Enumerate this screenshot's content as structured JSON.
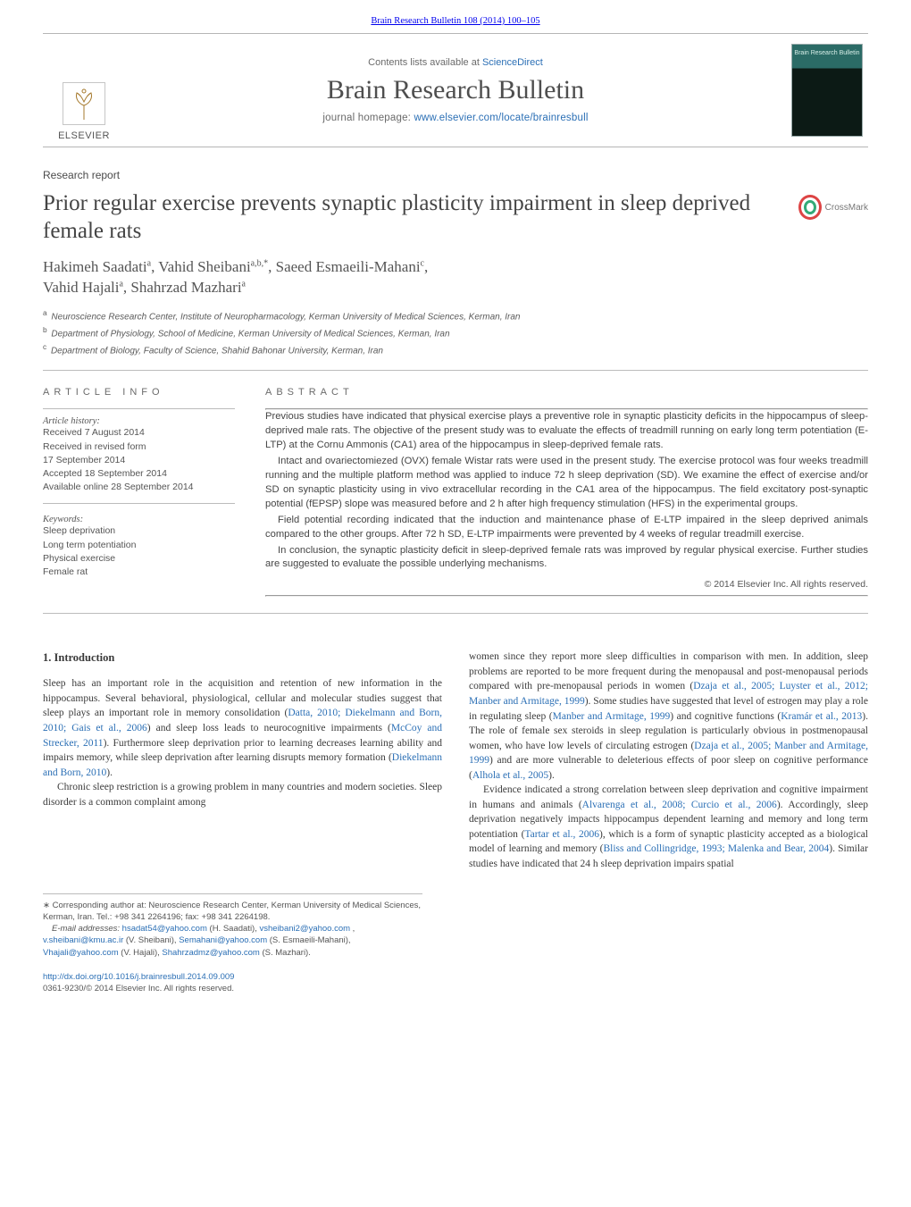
{
  "journal": {
    "citation_link_text": "Brain Research Bulletin 108 (2014) 100–105",
    "contents_prefix": "Contents lists available at ",
    "contents_link": "ScienceDirect",
    "name": "Brain Research Bulletin",
    "homepage_prefix": "journal homepage: ",
    "homepage_link": "www.elsevier.com/locate/brainresbull",
    "publisher": "ELSEVIER",
    "cover_label": "Brain Research Bulletin"
  },
  "crossmark_label": "CrossMark",
  "article": {
    "type_label": "Research report",
    "title": "Prior regular exercise prevents synaptic plasticity impairment in sleep deprived female rats",
    "authors_html_parts": {
      "a1": "Hakimeh Saadati",
      "a1s": "a",
      "a2": "Vahid Sheibani",
      "a2s": "a,b,",
      "a2star": "*",
      "a3": "Saeed Esmaeili-Mahani",
      "a3s": "c",
      "a4": "Vahid Hajali",
      "a4s": "a",
      "a5": "Shahrzad Mazhari",
      "a5s": "a"
    },
    "affiliations": {
      "a": "Neuroscience Research Center, Institute of Neuropharmacology, Kerman University of Medical Sciences, Kerman, Iran",
      "b": "Department of Physiology, School of Medicine, Kerman University of Medical Sciences, Kerman, Iran",
      "c": "Department of Biology, Faculty of Science, Shahid Bahonar University, Kerman, Iran"
    }
  },
  "info": {
    "heading": "article info",
    "history_label": "Article history:",
    "history": [
      "Received 7 August 2014",
      "Received in revised form",
      "17 September 2014",
      "Accepted 18 September 2014",
      "Available online 28 September 2014"
    ],
    "keywords_label": "Keywords:",
    "keywords": [
      "Sleep deprivation",
      "Long term potentiation",
      "Physical exercise",
      "Female rat"
    ]
  },
  "abstract": {
    "heading": "abstract",
    "paras": [
      "Previous studies have indicated that physical exercise plays a preventive role in synaptic plasticity deficits in the hippocampus of sleep-deprived male rats. The objective of the present study was to evaluate the effects of treadmill running on early long term potentiation (E-LTP) at the Cornu Ammonis (CA1) area of the hippocampus in sleep-deprived female rats.",
      "Intact and ovariectomiezed (OVX) female Wistar rats were used in the present study. The exercise protocol was four weeks treadmill running and the multiple platform method was applied to induce 72 h sleep deprivation (SD). We examine the effect of exercise and/or SD on synaptic plasticity using in vivo extracellular recording in the CA1 area of the hippocampus. The field excitatory post-synaptic potential (fEPSP) slope was measured before and 2 h after high frequency stimulation (HFS) in the experimental groups.",
      "Field potential recording indicated that the induction and maintenance phase of E-LTP impaired in the sleep deprived animals compared to the other groups. After 72 h SD, E-LTP impairments were prevented by 4 weeks of regular treadmill exercise.",
      "In conclusion, the synaptic plasticity deficit in sleep-deprived female rats was improved by regular physical exercise. Further studies are suggested to evaluate the possible underlying mechanisms."
    ],
    "copyright": "© 2014 Elsevier Inc. All rights reserved."
  },
  "body": {
    "section_heading": "1.  Introduction",
    "left_paras": [
      "Sleep has an important role in the acquisition and retention of new information in the hippocampus. Several behavioral, physiological, cellular and molecular studies suggest that sleep plays an important role in memory consolidation (|Datta, 2010; Diekelmann and Born, 2010; Gais et al., 2006|) and sleep loss leads to neurocognitive impairments (|McCoy and Strecker, 2011|). Furthermore sleep deprivation prior to learning decreases learning ability and impairs memory, while sleep deprivation after learning disrupts memory formation (|Diekelmann and Born, 2010|).",
      "Chronic sleep restriction is a growing problem in many countries and modern societies. Sleep disorder is a common complaint among"
    ],
    "right_paras": [
      "women since they report more sleep difficulties in comparison with men. In addition, sleep problems are reported to be more frequent during the menopausal and post-menopausal periods compared with pre-menopausal periods in women (|Dzaja et al., 2005; Luyster et al., 2012; Manber and Armitage, 1999|). Some studies have suggested that level of estrogen may play a role in regulating sleep (|Manber and Armitage, 1999|) and cognitive functions (|Kramár et al., 2013|). The role of female sex steroids in sleep regulation is particularly obvious in postmenopausal women, who have low levels of circulating estrogen (|Dzaja et al., 2005; Manber and Armitage, 1999|) and are more vulnerable to deleterious effects of poor sleep on cognitive performance (|Alhola et al., 2005|).",
      "Evidence indicated a strong correlation between sleep deprivation and cognitive impairment in humans and animals (|Alvarenga et al., 2008; Curcio et al., 2006|). Accordingly, sleep deprivation negatively impacts hippocampus dependent learning and memory and long term potentiation (|Tartar et al., 2006|), which is a form of synaptic plasticity accepted as a biological model of learning and memory (|Bliss and Collingridge, 1993; Malenka and Bear, 2004|). Similar studies have indicated that 24 h sleep deprivation impairs spatial"
    ]
  },
  "footnotes": {
    "corr": "Corresponding author at: Neuroscience Research Center, Kerman University of Medical Sciences, Kerman, Iran. Tel.: +98 341 2264196; fax: +98 341 2264198.",
    "email_label": "E-mail addresses:",
    "emails": [
      {
        "addr": "hsadat54@yahoo.com",
        "who": "(H. Saadati)"
      },
      {
        "addr": "vsheibani2@yahoo.com",
        "who": ""
      },
      {
        "addr": "v.sheibani@kmu.ac.ir",
        "who": "(V. Sheibani)"
      },
      {
        "addr": "Semahani@yahoo.com",
        "who": "(S. Esmaeili-Mahani)"
      },
      {
        "addr": "Vhajali@yahoo.com",
        "who": "(V. Hajali)"
      },
      {
        "addr": "Shahrzadmz@yahoo.com",
        "who": "(S. Mazhari)."
      }
    ]
  },
  "doi": {
    "url": "http://dx.doi.org/10.1016/j.brainresbull.2014.09.009",
    "issn_line": "0361-9230/© 2014 Elsevier Inc. All rights reserved."
  },
  "colors": {
    "link": "#2b6fb5",
    "text": "#3a3a3a",
    "rule": "#bcbcbc"
  }
}
